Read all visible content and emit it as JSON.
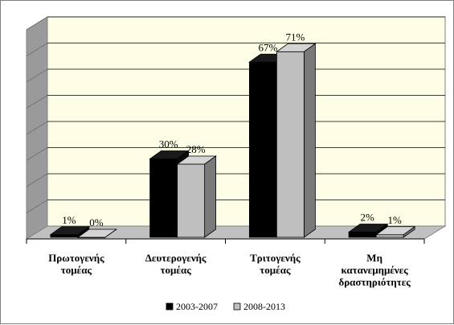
{
  "chart_data": {
    "type": "bar",
    "title": "",
    "xlabel": "",
    "ylabel": "",
    "ylim": [
      0,
      80
    ],
    "grid": true,
    "legend_position": "bottom",
    "categories": [
      [
        "Πρωτογενής",
        "τομέας"
      ],
      [
        "Δευτερογενής",
        "τομέας"
      ],
      [
        "Τριτογενής",
        "τομέας"
      ],
      [
        "Μη",
        "κατανεμημένες",
        "δραστηριότητες"
      ]
    ],
    "series": [
      {
        "name": "2003-2007",
        "values": [
          1,
          30,
          67,
          2
        ],
        "labels": [
          "1%",
          "30%",
          "67%",
          "2%"
        ],
        "color": "#000000"
      },
      {
        "name": "2008-2013",
        "values": [
          0,
          28,
          71,
          1
        ],
        "labels": [
          "0%",
          "28%",
          "71%",
          "1%"
        ],
        "color": "#bfbfbf"
      }
    ],
    "colors": {
      "plot_back": "#fefee6",
      "floor": "#c0c0c0",
      "wall_side": "#9a9a9a",
      "grid": "#000000"
    }
  }
}
